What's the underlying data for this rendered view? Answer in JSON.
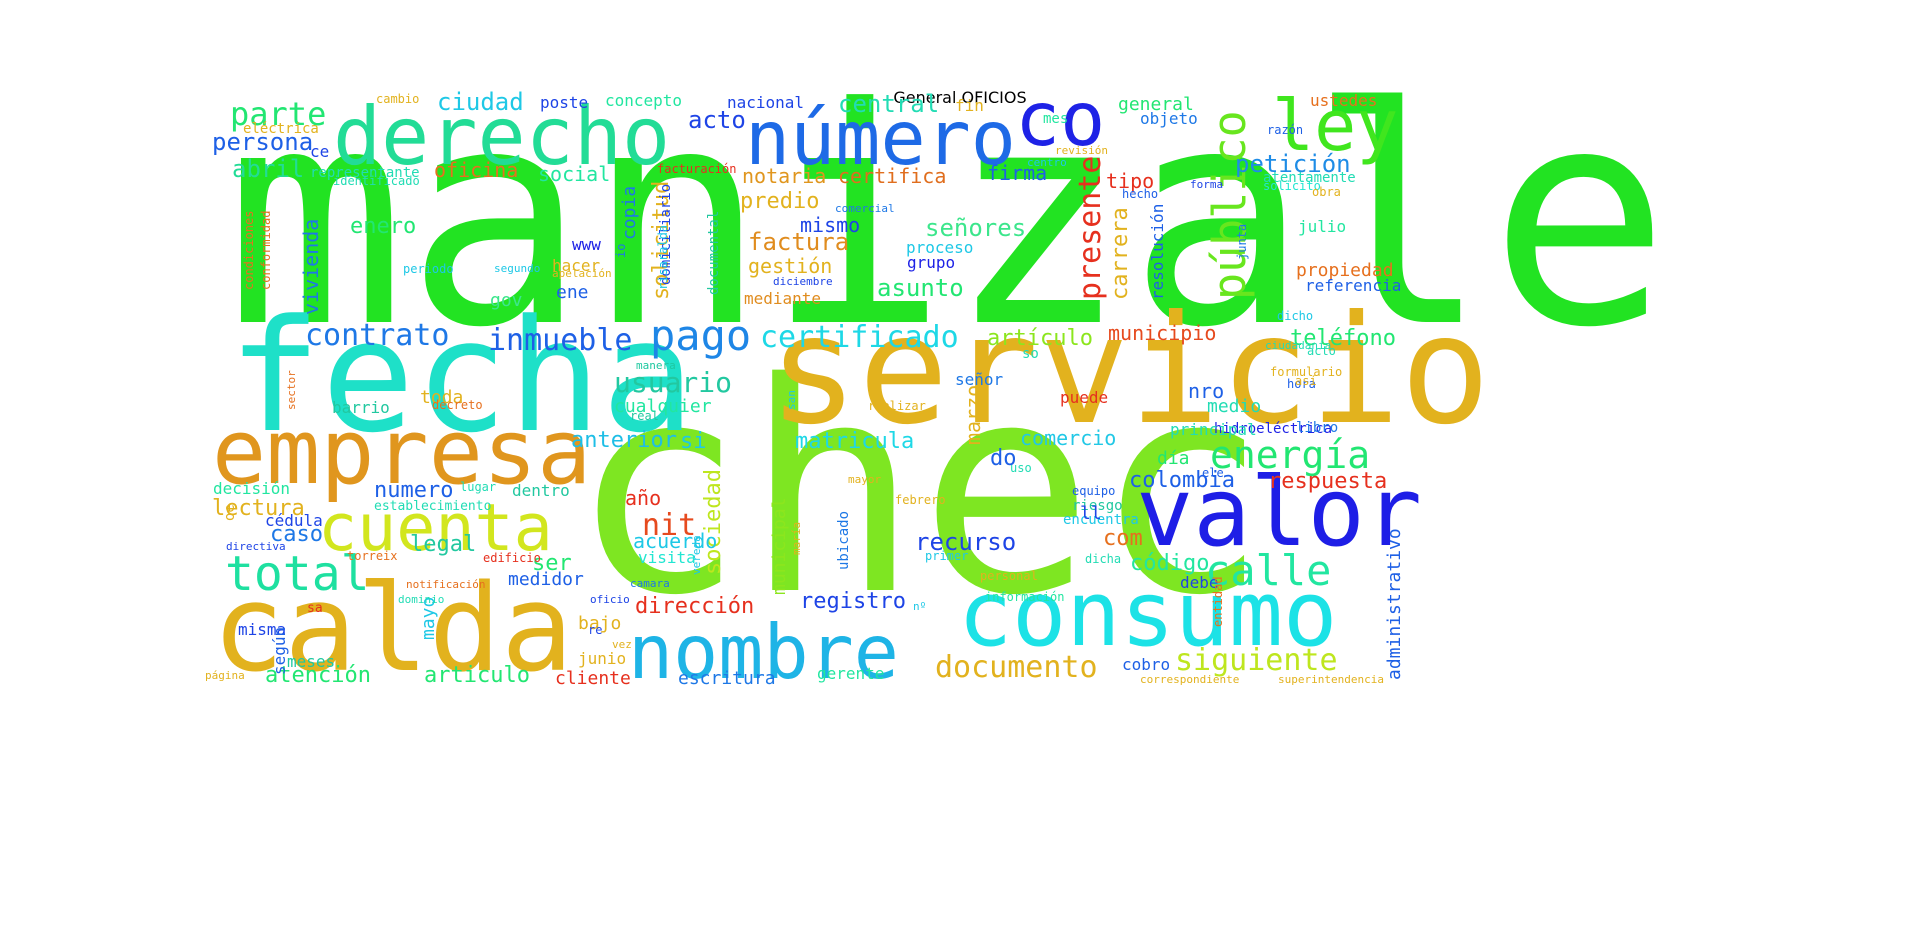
{
  "title": "General OFICIOS",
  "words": [
    {
      "text": "manizale",
      "color": "#22e322"
    },
    {
      "text": "chec",
      "color": "#7ee622"
    },
    {
      "text": "servicio",
      "color": "#e2b21e"
    },
    {
      "text": "fecha",
      "color": "#1ee0c8"
    },
    {
      "text": "calda",
      "color": "#e2b21e"
    },
    {
      "text": "consumo",
      "color": "#1ce2e6"
    },
    {
      "text": "derecho",
      "color": "#22dc96"
    },
    {
      "text": "empresa",
      "color": "#e0961e"
    },
    {
      "text": "valor",
      "color": "#1e1ee6"
    },
    {
      "text": "nombre",
      "color": "#1eb4e6"
    },
    {
      "text": "número",
      "color": "#1e6ae6"
    },
    {
      "text": "co",
      "color": "#1e22e6"
    },
    {
      "text": "ley",
      "color": "#40e61e"
    },
    {
      "text": "cuenta",
      "color": "#d2e61e"
    },
    {
      "text": "total",
      "color": "#1ee0a0"
    },
    {
      "text": "público",
      "color": "#68e61e"
    },
    {
      "text": "pago",
      "color": "#1e86e6"
    },
    {
      "text": "calle",
      "color": "#22e6a0"
    },
    {
      "text": "energía",
      "color": "#22e672"
    },
    {
      "text": "presente",
      "color": "#e6301e"
    },
    {
      "text": "documento",
      "color": "#e2b21e"
    },
    {
      "text": "siguiente",
      "color": "#bee61e"
    },
    {
      "text": "certificado",
      "color": "#1ed8e6"
    },
    {
      "text": "inmueble",
      "color": "#1e60e6"
    },
    {
      "text": "contrato",
      "color": "#1e78e6"
    },
    {
      "text": "usuario",
      "color": "#22c8a0"
    },
    {
      "text": "parte",
      "color": "#22e672"
    },
    {
      "text": "persona",
      "color": "#1e60e6"
    },
    {
      "text": "abril",
      "color": "#22dc96"
    },
    {
      "text": "ciudad",
      "color": "#1ec8e6"
    },
    {
      "text": "acto",
      "color": "#1e44e6"
    },
    {
      "text": "central",
      "color": "#22dcb4"
    },
    {
      "text": "petición",
      "color": "#1e8ce6"
    },
    {
      "text": "notaria",
      "color": "#e0961e"
    },
    {
      "text": "certifica",
      "color": "#e06e1e"
    },
    {
      "text": "factura",
      "color": "#e08c1e"
    },
    {
      "text": "gestión",
      "color": "#e2b21e"
    },
    {
      "text": "señores",
      "color": "#3ce68c"
    },
    {
      "text": "asunto",
      "color": "#22e672"
    },
    {
      "text": "predio",
      "color": "#e2b21e"
    },
    {
      "text": "mismo",
      "color": "#1e44e6"
    },
    {
      "text": "solicitud",
      "color": "#e2b21e"
    },
    {
      "text": "municipio",
      "color": "#e64a1e"
    },
    {
      "text": "teléfono",
      "color": "#22e672"
    },
    {
      "text": "artículo",
      "color": "#8ce61e"
    },
    {
      "text": "matricula",
      "color": "#1ed8e6"
    },
    {
      "text": "anterior",
      "color": "#1ebee6"
    },
    {
      "text": "colombia",
      "color": "#1e60e6"
    },
    {
      "text": "respuesta",
      "color": "#e6301e"
    },
    {
      "text": "nit",
      "color": "#e64a1e"
    },
    {
      "text": "año",
      "color": "#e6301e"
    },
    {
      "text": "recurso",
      "color": "#1e44e6"
    },
    {
      "text": "código",
      "color": "#22e6a0"
    },
    {
      "text": "dirección",
      "color": "#e6301e"
    },
    {
      "text": "registro",
      "color": "#1e44e6"
    },
    {
      "text": "atención",
      "color": "#22e672"
    },
    {
      "text": "articulo",
      "color": "#22e672"
    },
    {
      "text": "cliente",
      "color": "#e6301e"
    },
    {
      "text": "escritura",
      "color": "#1e78e6"
    },
    {
      "text": "gerente",
      "color": "#22e6a0"
    },
    {
      "text": "cobro",
      "color": "#1e60e6"
    },
    {
      "text": "administrativo",
      "color": "#1e60e6"
    },
    {
      "text": "lectura",
      "color": "#e2b21e"
    },
    {
      "text": "numero",
      "color": "#1e60e6"
    },
    {
      "text": "legal",
      "color": "#22c8a0"
    },
    {
      "text": "caso",
      "color": "#1e78e6"
    },
    {
      "text": "medidor",
      "color": "#1e60e6"
    },
    {
      "text": "enero",
      "color": "#22e672"
    },
    {
      "text": "vivienda",
      "color": "#1e78e6"
    },
    {
      "text": "oficina",
      "color": "#e6701e"
    },
    {
      "text": "social",
      "color": "#22e6a0"
    },
    {
      "text": "firma",
      "color": "#1e60e6"
    },
    {
      "text": "tipo",
      "color": "#e6301e"
    },
    {
      "text": "carrera",
      "color": "#e2b21e"
    },
    {
      "text": "comercio",
      "color": "#22c8e6"
    },
    {
      "text": "día",
      "color": "#22e672"
    },
    {
      "text": "nro",
      "color": "#1e60e6"
    },
    {
      "text": "medio",
      "color": "#22dcb4"
    },
    {
      "text": "puede",
      "color": "#e6301e"
    },
    {
      "text": "cualquier",
      "color": "#22e6a0"
    },
    {
      "text": "si",
      "color": "#1ec8e6"
    },
    {
      "text": "sociedad",
      "color": "#bee61e"
    },
    {
      "text": "municipal",
      "color": "#8ce61e"
    },
    {
      "text": "acuerdo",
      "color": "#1ec8e6"
    },
    {
      "text": "visita",
      "color": "#22e6d2"
    },
    {
      "text": "ser",
      "color": "#22e672"
    },
    {
      "text": "com",
      "color": "#e6701e"
    },
    {
      "text": "do",
      "color": "#1e60e6"
    },
    {
      "text": "marzo",
      "color": "#e2b21e"
    },
    {
      "text": "señor",
      "color": "#1e78e6"
    },
    {
      "text": "mayo",
      "color": "#1ec8e6"
    },
    {
      "text": "bajo",
      "color": "#e2b21e"
    },
    {
      "text": "junio",
      "color": "#e2b21e"
    },
    {
      "text": "meses",
      "color": "#1ec8a0"
    },
    {
      "text": "misma",
      "color": "#1e44e6"
    },
    {
      "text": "según",
      "color": "#1e60e6"
    },
    {
      "text": "decisión",
      "color": "#22e6a0"
    },
    {
      "text": "cédula",
      "color": "#1e44e6"
    },
    {
      "text": "toda",
      "color": "#e2b21e"
    },
    {
      "text": "barrio",
      "color": "#22c8a0"
    },
    {
      "text": "ene",
      "color": "#1e60e6"
    },
    {
      "text": "hacer",
      "color": "#e2b21e"
    },
    {
      "text": "gov",
      "color": "#3ce68c"
    },
    {
      "text": "copia",
      "color": "#1e78e6"
    },
    {
      "text": "www",
      "color": "#1e22e6"
    },
    {
      "text": "mediante",
      "color": "#e08c1e"
    },
    {
      "text": "grupo",
      "color": "#1e22e6"
    },
    {
      "text": "proceso",
      "color": "#1ec8e6"
    },
    {
      "text": "resolución",
      "color": "#1e60e6"
    },
    {
      "text": "propiedad",
      "color": "#e6701e"
    },
    {
      "text": "referencia",
      "color": "#1e60e6"
    },
    {
      "text": "julio",
      "color": "#22e6a0"
    },
    {
      "text": "general",
      "color": "#22e672"
    },
    {
      "text": "objeto",
      "color": "#1e78e6"
    },
    {
      "text": "ustedes",
      "color": "#e6701e"
    },
    {
      "text": "atentamente",
      "color": "#22dcb4"
    },
    {
      "text": "concepto",
      "color": "#22e6a0"
    },
    {
      "text": "poste",
      "color": "#1e44e6"
    },
    {
      "text": "nacional",
      "color": "#1e44e6"
    },
    {
      "text": "fin",
      "color": "#e2b21e"
    },
    {
      "text": "mes",
      "color": "#22e6a0"
    },
    {
      "text": "eléctrica",
      "color": "#e2b21e"
    },
    {
      "text": "representante",
      "color": "#22dcb4"
    },
    {
      "text": "ce",
      "color": "#1e44e6"
    },
    {
      "text": "identificado",
      "color": "#22dcb4"
    },
    {
      "text": "cambio",
      "color": "#e2b21e"
    },
    {
      "text": "domiciliario",
      "color": "#1e44e6"
    },
    {
      "text": "facturación",
      "color": "#e6301e"
    },
    {
      "text": "documental",
      "color": "#22c8a0"
    },
    {
      "text": "risaralda",
      "color": "#1ec8e6"
    },
    {
      "text": "diciembre",
      "color": "#1e44e6"
    },
    {
      "text": "apelación",
      "color": "#e2b21e"
    },
    {
      "text": "comercial",
      "color": "#1e78e6"
    },
    {
      "text": "condiciones",
      "color": "#e6701e"
    },
    {
      "text": "conformidad",
      "color": "#e6701e"
    },
    {
      "text": "periodo",
      "color": "#1ec8e6"
    },
    {
      "text": "io",
      "color": "#1e78e6"
    },
    {
      "text": "razón",
      "color": "#1e60e6"
    },
    {
      "text": "revisión",
      "color": "#e2b21e"
    },
    {
      "text": "centro",
      "color": "#1ec8e6"
    },
    {
      "text": "forma",
      "color": "#1e44e6"
    },
    {
      "text": "solicito",
      "color": "#22e6d2"
    },
    {
      "text": "obra",
      "color": "#e2b21e"
    },
    {
      "text": "hecho",
      "color": "#1e60e6"
    },
    {
      "text": "junta",
      "color": "#1e78e6"
    },
    {
      "text": "dicho",
      "color": "#1ec8e6"
    },
    {
      "text": "ciudadanía",
      "color": "#22dcb4"
    },
    {
      "text": "acto",
      "color": "#22dcb4"
    },
    {
      "text": "formulario",
      "color": "#e2b21e"
    },
    {
      "text": "hora",
      "color": "#1e60e6"
    },
    {
      "text": "así",
      "color": "#e2b21e"
    },
    {
      "text": "sector",
      "color": "#e6701e"
    },
    {
      "text": "decreto",
      "color": "#e6701e"
    },
    {
      "text": "real",
      "color": "#22c8a0"
    },
    {
      "text": "manera",
      "color": "#1ec8a0"
    },
    {
      "text": "san",
      "color": "#1ec8e6"
    },
    {
      "text": "realizar",
      "color": "#e2b21e"
    },
    {
      "text": "so",
      "color": "#22dcb4"
    },
    {
      "text": "hidroeléctrica",
      "color": "#1e22e6"
    },
    {
      "text": "libro",
      "color": "#1e78e6"
    },
    {
      "text": "principal",
      "color": "#22dcb4"
    },
    {
      "text": "uso",
      "color": "#22dcb4"
    },
    {
      "text": "ele",
      "color": "#1e60e6"
    },
    {
      "text": "equipo",
      "color": "#1e60e6"
    },
    {
      "text": "riesgo",
      "color": "#22c8a0"
    },
    {
      "text": "encuentra",
      "color": "#1ec8e6"
    },
    {
      "text": "mayor",
      "color": "#e2b21e"
    },
    {
      "text": "febrero",
      "color": "#e2b21e"
    },
    {
      "text": "ubicado",
      "color": "#1e78e6"
    },
    {
      "text": "maría",
      "color": "#e2b21e"
    },
    {
      "text": "primer",
      "color": "#1ec8e6"
    },
    {
      "text": "dicha",
      "color": "#22dcb4"
    },
    {
      "text": "debe",
      "color": "#1e44e6"
    },
    {
      "text": "personal",
      "color": "#e2b21e"
    },
    {
      "text": "información",
      "color": "#22e6a0"
    },
    {
      "text": "entidad",
      "color": "#e6701e"
    },
    {
      "text": "correspondiente",
      "color": "#e2b21e"
    },
    {
      "text": "superintendencia",
      "color": "#e2b21e"
    },
    {
      "text": "página",
      "color": "#e2b21e"
    },
    {
      "text": "oficio",
      "color": "#1e44e6"
    },
    {
      "text": "re",
      "color": "#1e44e6"
    },
    {
      "text": "vez",
      "color": "#e2b21e"
    },
    {
      "text": "camara",
      "color": "#1e78e6"
    },
    {
      "text": "vereda",
      "color": "#1ec8e6"
    },
    {
      "text": "edificio",
      "color": "#e6301e"
    },
    {
      "text": "torre",
      "color": "#e6701e"
    },
    {
      "text": "ix",
      "color": "#e6701e"
    },
    {
      "text": "notificación",
      "color": "#e6701e"
    },
    {
      "text": "dominio",
      "color": "#22dcb4"
    },
    {
      "text": "sa",
      "color": "#e6301e"
    },
    {
      "text": "directiva",
      "color": "#1e44e6"
    },
    {
      "text": "oe",
      "color": "#e2b21e"
    },
    {
      "text": "establecimiento",
      "color": "#22dcb4"
    },
    {
      "text": "lugar",
      "color": "#22dcb4"
    },
    {
      "text": "dentro",
      "color": "#22c8a0"
    },
    {
      "text": "segundo",
      "color": "#1ec8e6"
    },
    {
      "text": "ll",
      "color": "#1e44e6"
    },
    {
      "text": "nº",
      "color": "#1ec8e6"
    }
  ]
}
